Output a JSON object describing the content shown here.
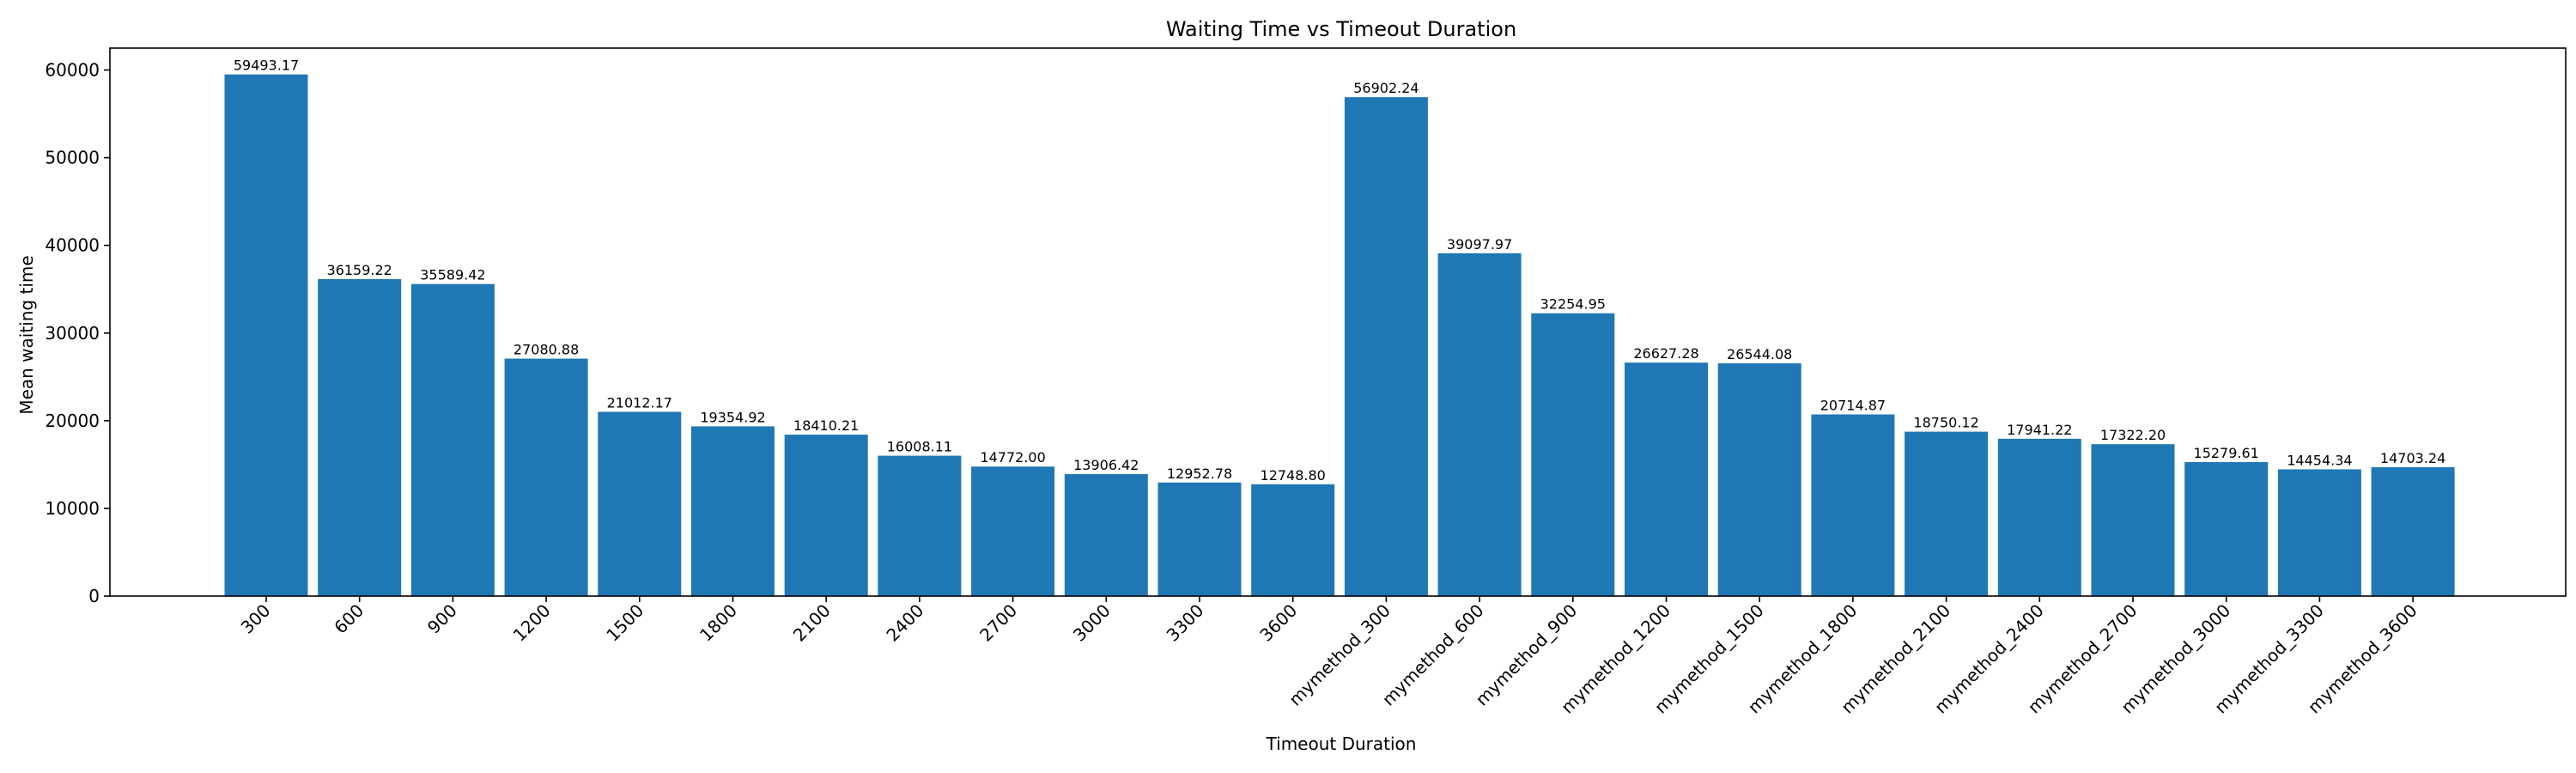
{
  "chart_data": {
    "type": "bar",
    "title": "Waiting Time vs Timeout Duration",
    "xlabel": "Timeout Duration",
    "ylabel": "Mean waiting time",
    "ylim": [
      0,
      62500
    ],
    "yticks": [
      0,
      10000,
      20000,
      30000,
      40000,
      50000,
      60000
    ],
    "grid": false,
    "bar_color": "#1f77b4",
    "categories": [
      "300",
      "600",
      "900",
      "1200",
      "1500",
      "1800",
      "2100",
      "2400",
      "2700",
      "3000",
      "3300",
      "3600",
      "mymethod_300",
      "mymethod_600",
      "mymethod_900",
      "mymethod_1200",
      "mymethod_1500",
      "mymethod_1800",
      "mymethod_2100",
      "mymethod_2400",
      "mymethod_2700",
      "mymethod_3000",
      "mymethod_3300",
      "mymethod_3600"
    ],
    "values": [
      59493.17,
      36159.22,
      35589.42,
      27080.88,
      21012.17,
      19354.92,
      18410.21,
      16008.11,
      14772.0,
      13906.42,
      12952.78,
      12748.8,
      56902.24,
      39097.97,
      32254.95,
      26627.28,
      26544.08,
      20714.87,
      18750.12,
      17941.22,
      17322.2,
      15279.61,
      14454.34,
      14703.24
    ],
    "value_labels": [
      "59493.17",
      "36159.22",
      "35589.42",
      "27080.88",
      "21012.17",
      "19354.92",
      "18410.21",
      "16008.11",
      "14772.00",
      "13906.42",
      "12952.78",
      "12748.80",
      "56902.24",
      "39097.97",
      "32254.95",
      "26627.28",
      "26544.08",
      "20714.87",
      "18750.12",
      "17941.22",
      "17322.20",
      "15279.61",
      "14454.34",
      "14703.24"
    ]
  }
}
